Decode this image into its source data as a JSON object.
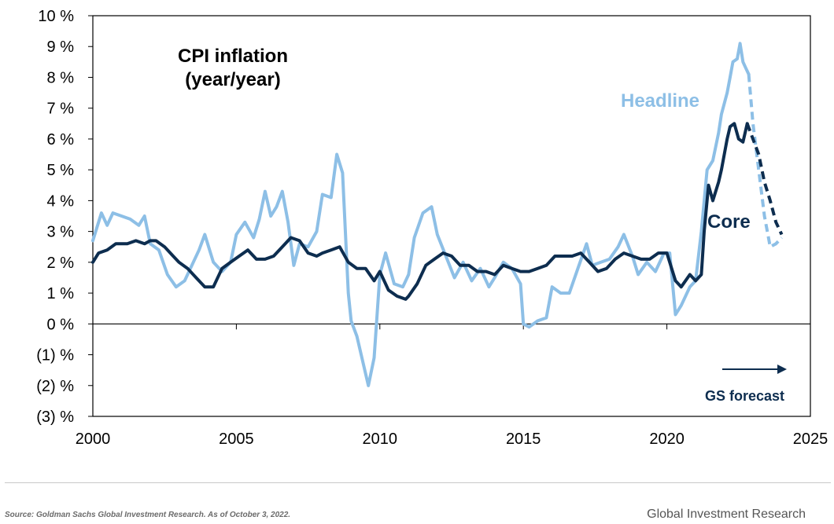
{
  "chart_data": {
    "type": "line",
    "title_lines": [
      "CPI inflation",
      "(year/year)"
    ],
    "xlim": [
      2000,
      2025
    ],
    "ylim": [
      -3,
      10
    ],
    "x_ticks": [
      2000,
      2005,
      2010,
      2015,
      2020,
      2025
    ],
    "y_ticks": [
      {
        "value": 10,
        "label": "10 %"
      },
      {
        "value": 9,
        "label": "9 %"
      },
      {
        "value": 8,
        "label": "8 %"
      },
      {
        "value": 7,
        "label": "7 %"
      },
      {
        "value": 6,
        "label": "6 %"
      },
      {
        "value": 5,
        "label": "5 %"
      },
      {
        "value": 4,
        "label": "4 %"
      },
      {
        "value": 3,
        "label": "3 %"
      },
      {
        "value": 2,
        "label": "2 %"
      },
      {
        "value": 1,
        "label": "1 %"
      },
      {
        "value": 0,
        "label": "0 %"
      },
      {
        "value": -1,
        "label": "(1) %"
      },
      {
        "value": -2,
        "label": "(2) %"
      },
      {
        "value": -3,
        "label": "(3) %"
      }
    ],
    "series": [
      {
        "name": "Headline",
        "color": "#8dbfe6",
        "values": [
          [
            2000,
            2.7
          ],
          [
            2000.3,
            3.6
          ],
          [
            2000.5,
            3.2
          ],
          [
            2000.7,
            3.6
          ],
          [
            2001,
            3.5
          ],
          [
            2001.3,
            3.4
          ],
          [
            2001.6,
            3.2
          ],
          [
            2001.8,
            3.5
          ],
          [
            2002,
            2.6
          ],
          [
            2002.3,
            2.4
          ],
          [
            2002.6,
            1.6
          ],
          [
            2002.9,
            1.2
          ],
          [
            2003.2,
            1.4
          ],
          [
            2003.5,
            2.0
          ],
          [
            2003.7,
            2.4
          ],
          [
            2003.9,
            2.9
          ],
          [
            2004.2,
            2.0
          ],
          [
            2004.5,
            1.7
          ],
          [
            2004.8,
            2.0
          ],
          [
            2005,
            2.9
          ],
          [
            2005.3,
            3.3
          ],
          [
            2005.6,
            2.8
          ],
          [
            2005.8,
            3.4
          ],
          [
            2006,
            4.3
          ],
          [
            2006.2,
            3.5
          ],
          [
            2006.4,
            3.8
          ],
          [
            2006.6,
            4.3
          ],
          [
            2006.8,
            3.3
          ],
          [
            2007,
            1.9
          ],
          [
            2007.2,
            2.6
          ],
          [
            2007.5,
            2.5
          ],
          [
            2007.8,
            3.0
          ],
          [
            2008,
            4.2
          ],
          [
            2008.3,
            4.1
          ],
          [
            2008.5,
            5.5
          ],
          [
            2008.7,
            4.9
          ],
          [
            2008.9,
            1.0
          ],
          [
            2009,
            0.1
          ],
          [
            2009.2,
            -0.4
          ],
          [
            2009.4,
            -1.2
          ],
          [
            2009.6,
            -2.0
          ],
          [
            2009.8,
            -1.1
          ],
          [
            2010,
            1.6
          ],
          [
            2010.2,
            2.3
          ],
          [
            2010.5,
            1.3
          ],
          [
            2010.8,
            1.2
          ],
          [
            2011,
            1.6
          ],
          [
            2011.2,
            2.8
          ],
          [
            2011.5,
            3.6
          ],
          [
            2011.8,
            3.8
          ],
          [
            2012,
            2.9
          ],
          [
            2012.3,
            2.2
          ],
          [
            2012.6,
            1.5
          ],
          [
            2012.9,
            2.0
          ],
          [
            2013.2,
            1.4
          ],
          [
            2013.5,
            1.8
          ],
          [
            2013.8,
            1.2
          ],
          [
            2014,
            1.5
          ],
          [
            2014.3,
            2.0
          ],
          [
            2014.6,
            1.8
          ],
          [
            2014.9,
            1.3
          ],
          [
            2015,
            0.0
          ],
          [
            2015.2,
            -0.1
          ],
          [
            2015.5,
            0.1
          ],
          [
            2015.8,
            0.2
          ],
          [
            2016,
            1.2
          ],
          [
            2016.3,
            1.0
          ],
          [
            2016.6,
            1.0
          ],
          [
            2016.9,
            1.8
          ],
          [
            2017.2,
            2.6
          ],
          [
            2017.4,
            1.9
          ],
          [
            2017.7,
            2.0
          ],
          [
            2018,
            2.1
          ],
          [
            2018.3,
            2.5
          ],
          [
            2018.5,
            2.9
          ],
          [
            2018.8,
            2.2
          ],
          [
            2019,
            1.6
          ],
          [
            2019.3,
            2.0
          ],
          [
            2019.6,
            1.7
          ],
          [
            2019.9,
            2.3
          ],
          [
            2020.1,
            2.3
          ],
          [
            2020.3,
            0.3
          ],
          [
            2020.5,
            0.6
          ],
          [
            2020.8,
            1.2
          ],
          [
            2021,
            1.4
          ],
          [
            2021.2,
            3.0
          ],
          [
            2021.4,
            5.0
          ],
          [
            2021.6,
            5.3
          ],
          [
            2021.8,
            6.2
          ],
          [
            2021.9,
            6.8
          ],
          [
            2022.1,
            7.5
          ],
          [
            2022.2,
            8.0
          ],
          [
            2022.3,
            8.5
          ],
          [
            2022.45,
            8.6
          ],
          [
            2022.55,
            9.1
          ],
          [
            2022.65,
            8.5
          ],
          [
            2022.75,
            8.3
          ],
          [
            2022.85,
            8.1
          ]
        ],
        "forecast": [
          [
            2022.85,
            8.1
          ],
          [
            2023,
            6.5
          ],
          [
            2023.2,
            5.0
          ],
          [
            2023.4,
            3.5
          ],
          [
            2023.6,
            2.5
          ],
          [
            2023.8,
            2.6
          ],
          [
            2024,
            2.8
          ]
        ]
      },
      {
        "name": "Core",
        "color": "#0d2d4f",
        "values": [
          [
            2000,
            2.0
          ],
          [
            2000.2,
            2.3
          ],
          [
            2000.5,
            2.4
          ],
          [
            2000.8,
            2.6
          ],
          [
            2001.2,
            2.6
          ],
          [
            2001.5,
            2.7
          ],
          [
            2001.8,
            2.6
          ],
          [
            2002,
            2.7
          ],
          [
            2002.2,
            2.7
          ],
          [
            2002.5,
            2.5
          ],
          [
            2002.8,
            2.2
          ],
          [
            2003,
            2.0
          ],
          [
            2003.3,
            1.8
          ],
          [
            2003.6,
            1.5
          ],
          [
            2003.9,
            1.2
          ],
          [
            2004.2,
            1.2
          ],
          [
            2004.5,
            1.8
          ],
          [
            2004.8,
            2.0
          ],
          [
            2005.1,
            2.2
          ],
          [
            2005.4,
            2.4
          ],
          [
            2005.7,
            2.1
          ],
          [
            2006,
            2.1
          ],
          [
            2006.3,
            2.2
          ],
          [
            2006.6,
            2.5
          ],
          [
            2006.9,
            2.8
          ],
          [
            2007.2,
            2.7
          ],
          [
            2007.5,
            2.3
          ],
          [
            2007.8,
            2.2
          ],
          [
            2008,
            2.3
          ],
          [
            2008.3,
            2.4
          ],
          [
            2008.6,
            2.5
          ],
          [
            2008.9,
            2.0
          ],
          [
            2009.2,
            1.8
          ],
          [
            2009.5,
            1.8
          ],
          [
            2009.8,
            1.4
          ],
          [
            2010,
            1.7
          ],
          [
            2010.3,
            1.1
          ],
          [
            2010.6,
            0.9
          ],
          [
            2010.9,
            0.8
          ],
          [
            2011,
            0.9
          ],
          [
            2011.3,
            1.3
          ],
          [
            2011.6,
            1.9
          ],
          [
            2011.9,
            2.1
          ],
          [
            2012.2,
            2.3
          ],
          [
            2012.5,
            2.2
          ],
          [
            2012.8,
            1.9
          ],
          [
            2013.1,
            1.9
          ],
          [
            2013.4,
            1.7
          ],
          [
            2013.7,
            1.7
          ],
          [
            2014,
            1.6
          ],
          [
            2014.3,
            1.9
          ],
          [
            2014.6,
            1.8
          ],
          [
            2014.9,
            1.7
          ],
          [
            2015.2,
            1.7
          ],
          [
            2015.5,
            1.8
          ],
          [
            2015.8,
            1.9
          ],
          [
            2016.1,
            2.2
          ],
          [
            2016.4,
            2.2
          ],
          [
            2016.7,
            2.2
          ],
          [
            2017,
            2.3
          ],
          [
            2017.3,
            2.0
          ],
          [
            2017.6,
            1.7
          ],
          [
            2017.9,
            1.8
          ],
          [
            2018.2,
            2.1
          ],
          [
            2018.5,
            2.3
          ],
          [
            2018.8,
            2.2
          ],
          [
            2019.1,
            2.1
          ],
          [
            2019.4,
            2.1
          ],
          [
            2019.7,
            2.3
          ],
          [
            2020,
            2.3
          ],
          [
            2020.3,
            1.4
          ],
          [
            2020.5,
            1.2
          ],
          [
            2020.8,
            1.6
          ],
          [
            2021,
            1.4
          ],
          [
            2021.2,
            1.6
          ],
          [
            2021.3,
            3.0
          ],
          [
            2021.45,
            4.5
          ],
          [
            2021.6,
            4.0
          ],
          [
            2021.8,
            4.6
          ],
          [
            2021.9,
            5.0
          ],
          [
            2022.1,
            6.0
          ],
          [
            2022.2,
            6.4
          ],
          [
            2022.35,
            6.5
          ],
          [
            2022.5,
            6.0
          ],
          [
            2022.65,
            5.9
          ],
          [
            2022.75,
            6.3
          ],
          [
            2022.8,
            6.5
          ]
        ],
        "forecast": [
          [
            2022.8,
            6.5
          ],
          [
            2023,
            6.0
          ],
          [
            2023.2,
            5.5
          ],
          [
            2023.4,
            4.6
          ],
          [
            2023.6,
            4.0
          ],
          [
            2023.8,
            3.3
          ],
          [
            2024,
            2.9
          ]
        ]
      }
    ],
    "annotations": {
      "headline_label": "Headline",
      "core_label": "Core",
      "forecast_label": "GS forecast"
    },
    "legend_placement": "inline labels near lines",
    "grid": false
  },
  "footer": {
    "source": "Source: Goldman Sachs Global Investment Research. As of October 3, 2022.",
    "brand": "Global Investment Research"
  }
}
